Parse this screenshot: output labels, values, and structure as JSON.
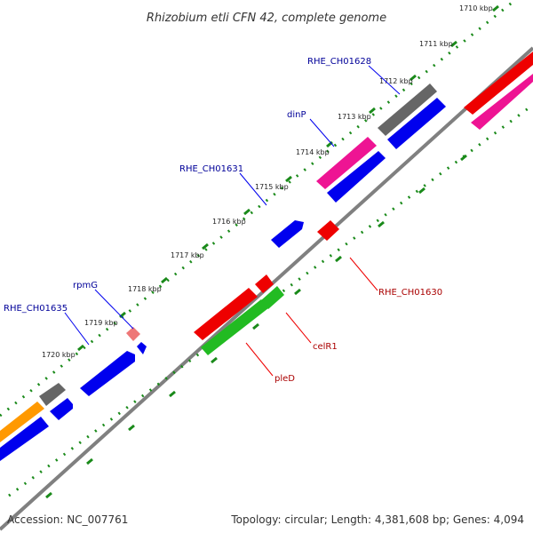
{
  "title": "Rhizobium etli CFN 42, complete genome",
  "footer": {
    "accession": "Accession: NC_007761",
    "topology": "Topology: circular; Length: 4,381,608 bp; Genes: 4,094"
  },
  "ticks": [
    "1710 kbp",
    "1711 kbp",
    "1712 kbp",
    "1713 kbp",
    "1714 kbp",
    "1715 kbp",
    "1716 kbp",
    "1717 kbp",
    "1718 kbp",
    "1719 kbp",
    "1720 kbp"
  ],
  "gene_labels": {
    "rhe_ch01628": "RHE_CH01628",
    "dinp": "dinP",
    "rhe_ch01631": "RHE_CH01631",
    "rpmg": "rpmG",
    "rhe_ch01635": "RHE_CH01635",
    "rhe_ch01630": "RHE_CH01630",
    "celr1": "celR1",
    "pled": "pleD"
  },
  "colors": {
    "backbone": "#808080",
    "dots": "#1a8a1a",
    "blue": "#0000ee",
    "gray": "#666666",
    "magenta": "#ee1493",
    "red": "#ee0000",
    "green": "#22bb22",
    "orange": "#ff9900",
    "pink": "#ee7777",
    "label_blue": "#000099",
    "label_red": "#aa0000"
  }
}
